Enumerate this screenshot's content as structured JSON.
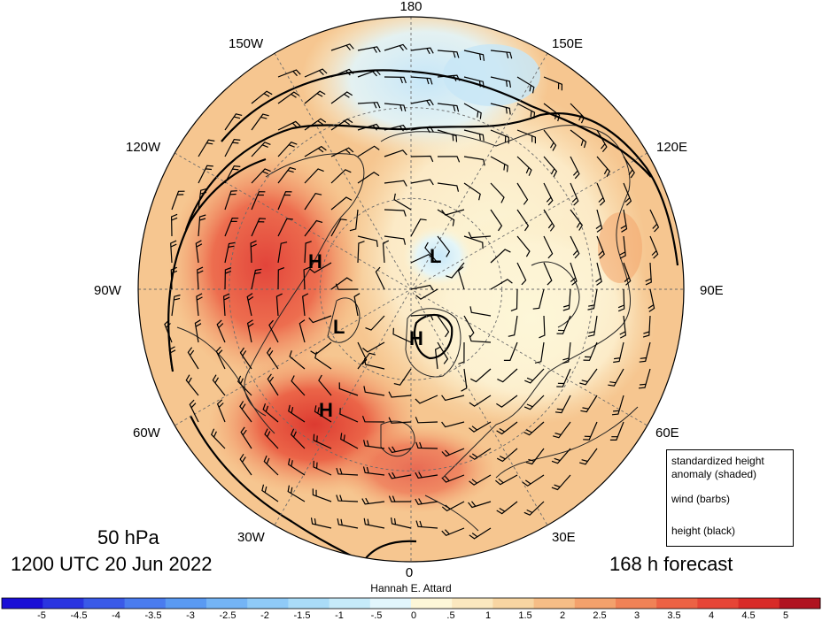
{
  "title": {
    "level": "50 hPa",
    "datetime": "1200 UTC 20 Jun 2022",
    "forecast": "168 h forecast",
    "credit": "Hannah E. Attard"
  },
  "longitude_labels": [
    {
      "name": "lon-180",
      "text": "180"
    },
    {
      "name": "lon-150w",
      "text": "150W"
    },
    {
      "name": "lon-150e",
      "text": "150E"
    },
    {
      "name": "lon-120w",
      "text": "120W"
    },
    {
      "name": "lon-120e",
      "text": "120E"
    },
    {
      "name": "lon-90w",
      "text": "90W"
    },
    {
      "name": "lon-90e",
      "text": "90E"
    },
    {
      "name": "lon-60w",
      "text": "60W"
    },
    {
      "name": "lon-60e",
      "text": "60E"
    },
    {
      "name": "lon-30w",
      "text": "30W"
    },
    {
      "name": "lon-30e",
      "text": "30E"
    },
    {
      "name": "lon-0",
      "text": "0"
    }
  ],
  "pressure_centers": [
    {
      "name": "high-center-canada",
      "text": "H"
    },
    {
      "name": "low-center-siberia",
      "text": "L"
    },
    {
      "name": "low-center-baffin",
      "text": "L"
    },
    {
      "name": "high-center-greenland",
      "text": "H"
    },
    {
      "name": "high-center-atlantic",
      "text": "H"
    }
  ],
  "legend": {
    "shaded": "standardized height anomaly (shaded)",
    "shaded_line1": "standardized height",
    "shaded_line2": "anomaly (shaded)",
    "barbs": "wind (barbs)",
    "contours": "height (black)"
  },
  "colorbar": {
    "ticks": [
      "-5",
      "-4.5",
      "-4",
      "-3.5",
      "-3",
      "-2.5",
      "-2",
      "-1.5",
      "-1",
      "-.5",
      "0",
      ".5",
      "1",
      "1.5",
      "2",
      "2.5",
      "3",
      "3.5",
      "4",
      "4.5",
      "5"
    ],
    "colors": [
      "#1a0fd6",
      "#2a35e0",
      "#3a5ae8",
      "#4a7cef",
      "#5a9af2",
      "#74b4f5",
      "#8fcaf7",
      "#aadcf8",
      "#c6ebfa",
      "#e2f6fc",
      "#fdf7d8",
      "#fbe8bf",
      "#f8d5a2",
      "#f6bd86",
      "#f3a16c",
      "#f08256",
      "#ec6244",
      "#e64536",
      "#d82b28",
      "#b01320"
    ],
    "color_levels": [
      "-5 to -4.5",
      "-4.5 to -4",
      "-4 to -3.5",
      "-3.5 to -3",
      "-3 to -2.5",
      "-2.5 to -2",
      "-2 to -1.5",
      "-1.5 to -1",
      "-1 to -.5",
      "-.5 to 0",
      "0 to .5",
      ".5 to 1",
      "1 to 1.5",
      "1.5 to 2",
      "2 to 2.5",
      "2.5 to 3",
      "3 to 3.5",
      "3.5 to 4",
      "4 to 4.5",
      "4.5 to 5"
    ]
  }
}
